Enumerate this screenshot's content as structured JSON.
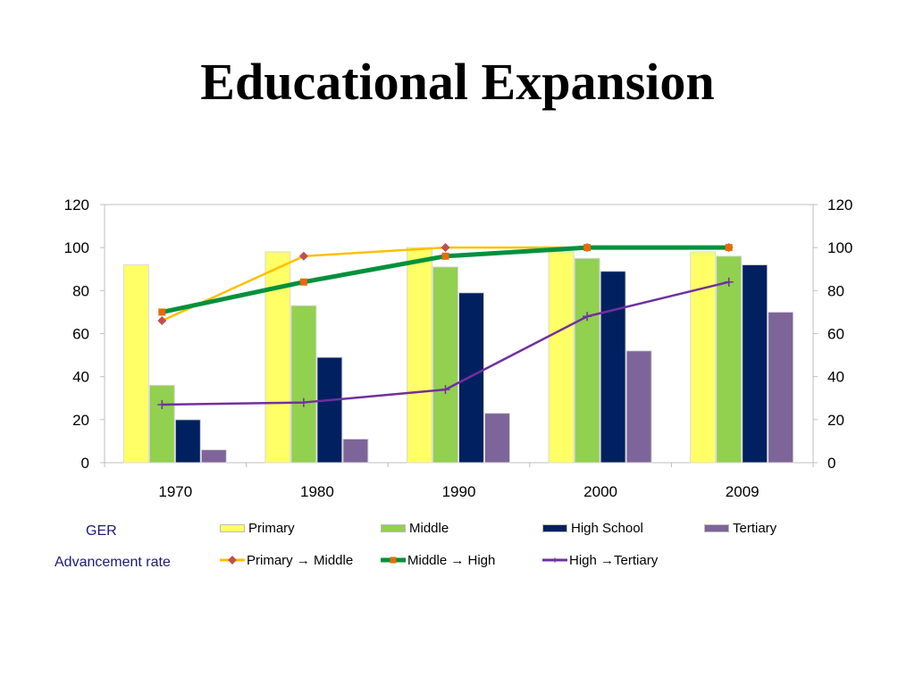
{
  "slide": {
    "title": "Educational Expansion"
  },
  "legend": {
    "ger_label": "GER",
    "advancement_label": "Advancement  rate"
  },
  "chart_data": {
    "type": "bar+line",
    "categories": [
      "1970",
      "1980",
      "1990",
      "2000",
      "2009"
    ],
    "ylim": [
      0,
      120
    ],
    "yticks": [
      "0",
      "20",
      "40",
      "60",
      "80",
      "100",
      "120"
    ],
    "y2ticks": [
      "0",
      "20",
      "40",
      "60",
      "80",
      "100",
      "120"
    ],
    "grid": false,
    "bar_series": [
      {
        "name": "Primary",
        "color": "#ffff66",
        "values": [
          92,
          98,
          100,
          98,
          98
        ]
      },
      {
        "name": "Middle",
        "color": "#92d050",
        "values": [
          36,
          73,
          91,
          95,
          96
        ]
      },
      {
        "name": "High School",
        "color": "#002060",
        "values": [
          20,
          49,
          79,
          89,
          92
        ]
      },
      {
        "name": "Tertiary",
        "color": "#7e6599",
        "values": [
          6,
          11,
          23,
          52,
          70
        ]
      }
    ],
    "line_series": [
      {
        "name": "Primary → Middle",
        "color": "#ffc000",
        "width": 2.5,
        "marker": "diamond",
        "marker_color": "#c0504d",
        "values": [
          66,
          96,
          100,
          100,
          100
        ]
      },
      {
        "name": "Middle → High",
        "color": "#00913c",
        "width": 5,
        "marker": "square",
        "marker_color": "#e46c0a",
        "values": [
          70,
          84,
          96,
          100,
          100
        ]
      },
      {
        "name": "High →Tertiary",
        "color": "#7030a0",
        "width": 2.5,
        "marker": "plus",
        "marker_color": "#7030a0",
        "values": [
          27,
          28,
          34,
          68,
          84
        ]
      }
    ]
  }
}
